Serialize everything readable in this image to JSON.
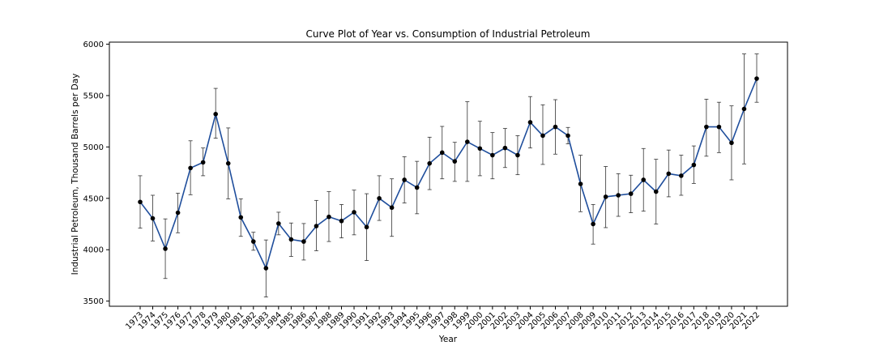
{
  "chart_data": {
    "type": "line",
    "title": "Curve Plot of Year vs. Consumption of Industrial Petroleum",
    "xlabel": "Year",
    "ylabel": "Industrial Petroleum, Thousand Barrels per Day",
    "ylim": [
      3450,
      6020
    ],
    "yticks": [
      3500,
      4000,
      4500,
      5000,
      5500,
      6000
    ],
    "grid": false,
    "line_color": "#1f4e9c",
    "marker_color": "#000000",
    "errorbar_color": "#333333",
    "x": [
      "1973",
      "1974",
      "1975",
      "1976",
      "1977",
      "1978",
      "1979",
      "1980",
      "1981",
      "1982",
      "1983",
      "1984",
      "1985",
      "1986",
      "1987",
      "1988",
      "1989",
      "1990",
      "1991",
      "1992",
      "1993",
      "1994",
      "1995",
      "1996",
      "1997",
      "1998",
      "1999",
      "2000",
      "2001",
      "2002",
      "2003",
      "2004",
      "2005",
      "2006",
      "2007",
      "2008",
      "2009",
      "2010",
      "2011",
      "2012",
      "2013",
      "2014",
      "2015",
      "2016",
      "2017",
      "2018",
      "2019",
      "2020",
      "2021",
      "2022"
    ],
    "values": [
      4465,
      4305,
      4010,
      4360,
      4795,
      4850,
      5320,
      4840,
      4315,
      4080,
      3820,
      4255,
      4100,
      4080,
      4230,
      4320,
      4280,
      4365,
      4220,
      4500,
      4410,
      4680,
      4605,
      4840,
      4945,
      4860,
      5050,
      4985,
      4920,
      4990,
      4920,
      5240,
      5110,
      5195,
      5110,
      4640,
      4250,
      4515,
      4530,
      4545,
      4680,
      4565,
      4740,
      4720,
      4825,
      5195,
      5195,
      5040,
      5370,
      5665
    ],
    "error_low": [
      4210,
      4085,
      3720,
      4165,
      4535,
      4720,
      5085,
      4495,
      4130,
      3995,
      3540,
      4145,
      3935,
      3900,
      3990,
      4080,
      4115,
      4145,
      3895,
      4285,
      4130,
      4455,
      4350,
      4585,
      4690,
      4665,
      4665,
      4720,
      4690,
      4800,
      4730,
      4990,
      4830,
      4930,
      5030,
      4370,
      4055,
      4215,
      4325,
      4360,
      4375,
      4250,
      4515,
      4530,
      4645,
      4910,
      4945,
      4680,
      4835,
      5435
    ],
    "error_high": [
      4720,
      4530,
      4300,
      4550,
      5060,
      4990,
      5570,
      5185,
      4495,
      4170,
      4095,
      4365,
      4260,
      4255,
      4480,
      4565,
      4440,
      4580,
      4545,
      4720,
      4690,
      4905,
      4860,
      5095,
      5200,
      5045,
      5440,
      5250,
      5140,
      5180,
      5110,
      5490,
      5410,
      5460,
      5190,
      4920,
      4440,
      4810,
      4740,
      4725,
      4985,
      4880,
      4970,
      4920,
      5010,
      5465,
      5435,
      5400,
      5905,
      5905
    ]
  }
}
